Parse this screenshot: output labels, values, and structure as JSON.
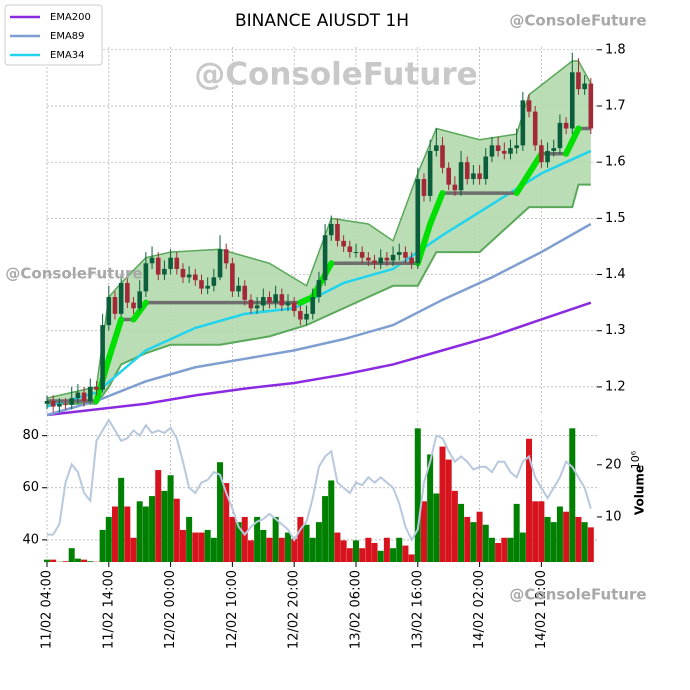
{
  "chart_data": [
    {
      "type": "candlestick",
      "title": "BINANCE AIUSDT 1H",
      "annotations": [
        "@ConsoleFuture",
        "@ConsoleFuture",
        "@ConsoleFuture",
        "@ConsoleFuture"
      ],
      "ylim": [
        1.15,
        1.805
      ],
      "yticks": [
        1.2,
        1.3,
        1.4,
        1.5,
        1.6,
        1.7,
        1.8
      ],
      "grid": true,
      "legend": "upper left",
      "up_color": "#0a5e3c",
      "down_color": "#a32838",
      "x": [
        0,
        1,
        2,
        3,
        4,
        5,
        6,
        7,
        8,
        9,
        10,
        11,
        12,
        13,
        14,
        15,
        16,
        17,
        18,
        19,
        20,
        21,
        22,
        23,
        24,
        25,
        26,
        27,
        28,
        29,
        30,
        31,
        32,
        33,
        34,
        35,
        36,
        37,
        38,
        39,
        40,
        41,
        42,
        43,
        44,
        45,
        46,
        47,
        48,
        49,
        50,
        51,
        52,
        53,
        54,
        55,
        56,
        57,
        58,
        59,
        60,
        61,
        62,
        63,
        64,
        65,
        66,
        67,
        68,
        69,
        70,
        71,
        72,
        73,
        74,
        75,
        76,
        77,
        78,
        79,
        80,
        81,
        82,
        83,
        84,
        85,
        86,
        87,
        88
      ],
      "open": [
        1.17,
        1.175,
        1.165,
        1.17,
        1.168,
        1.18,
        1.19,
        1.175,
        1.2,
        1.195,
        1.31,
        1.36,
        1.33,
        1.385,
        1.35,
        1.34,
        1.37,
        1.42,
        1.43,
        1.4,
        1.41,
        1.43,
        1.41,
        1.395,
        1.4,
        1.39,
        1.375,
        1.38,
        1.395,
        1.445,
        1.42,
        1.37,
        1.38,
        1.355,
        1.34,
        1.345,
        1.36,
        1.35,
        1.365,
        1.345,
        1.35,
        1.335,
        1.32,
        1.33,
        1.36,
        1.39,
        1.47,
        1.49,
        1.46,
        1.45,
        1.44,
        1.44,
        1.43,
        1.425,
        1.42,
        1.43,
        1.425,
        1.435,
        1.44,
        1.43,
        1.42,
        1.57,
        1.54,
        1.62,
        1.63,
        1.59,
        1.56,
        1.55,
        1.6,
        1.57,
        1.58,
        1.57,
        1.61,
        1.63,
        1.62,
        1.615,
        1.625,
        1.63,
        1.71,
        1.69,
        1.63,
        1.6,
        1.62,
        1.625,
        1.67,
        1.66,
        1.76,
        1.73,
        1.74
      ],
      "high": [
        1.185,
        1.185,
        1.18,
        1.18,
        1.2,
        1.205,
        1.2,
        1.215,
        1.21,
        1.33,
        1.38,
        1.37,
        1.4,
        1.395,
        1.36,
        1.39,
        1.44,
        1.45,
        1.44,
        1.425,
        1.445,
        1.44,
        1.42,
        1.415,
        1.41,
        1.4,
        1.395,
        1.41,
        1.47,
        1.455,
        1.43,
        1.395,
        1.39,
        1.365,
        1.36,
        1.375,
        1.37,
        1.38,
        1.375,
        1.365,
        1.36,
        1.345,
        1.345,
        1.375,
        1.405,
        1.49,
        1.505,
        1.5,
        1.47,
        1.46,
        1.455,
        1.45,
        1.44,
        1.435,
        1.445,
        1.44,
        1.45,
        1.455,
        1.45,
        1.44,
        1.59,
        1.58,
        1.64,
        1.66,
        1.645,
        1.6,
        1.575,
        1.62,
        1.61,
        1.595,
        1.595,
        1.625,
        1.645,
        1.645,
        1.635,
        1.64,
        1.66,
        1.725,
        1.72,
        1.7,
        1.64,
        1.635,
        1.64,
        1.685,
        1.68,
        1.795,
        1.785,
        1.755,
        1.75
      ],
      "low": [
        1.16,
        1.155,
        1.155,
        1.16,
        1.16,
        1.17,
        1.165,
        1.17,
        1.185,
        1.19,
        1.3,
        1.32,
        1.325,
        1.34,
        1.33,
        1.335,
        1.36,
        1.41,
        1.39,
        1.39,
        1.4,
        1.4,
        1.385,
        1.385,
        1.38,
        1.365,
        1.365,
        1.37,
        1.39,
        1.41,
        1.36,
        1.36,
        1.345,
        1.33,
        1.33,
        1.335,
        1.34,
        1.34,
        1.335,
        1.335,
        1.325,
        1.31,
        1.31,
        1.32,
        1.35,
        1.38,
        1.46,
        1.45,
        1.44,
        1.43,
        1.43,
        1.42,
        1.415,
        1.41,
        1.41,
        1.415,
        1.415,
        1.425,
        1.42,
        1.41,
        1.41,
        1.53,
        1.53,
        1.61,
        1.58,
        1.55,
        1.54,
        1.54,
        1.56,
        1.56,
        1.56,
        1.56,
        1.6,
        1.61,
        1.605,
        1.605,
        1.615,
        1.62,
        1.68,
        1.62,
        1.59,
        1.59,
        1.61,
        1.615,
        1.65,
        1.65,
        1.72,
        1.72,
        1.65
      ],
      "close": [
        1.175,
        1.165,
        1.17,
        1.168,
        1.18,
        1.19,
        1.175,
        1.2,
        1.195,
        1.31,
        1.36,
        1.33,
        1.385,
        1.35,
        1.34,
        1.37,
        1.42,
        1.43,
        1.4,
        1.41,
        1.43,
        1.41,
        1.395,
        1.4,
        1.39,
        1.375,
        1.38,
        1.395,
        1.445,
        1.42,
        1.37,
        1.38,
        1.355,
        1.34,
        1.345,
        1.36,
        1.35,
        1.365,
        1.345,
        1.35,
        1.335,
        1.32,
        1.33,
        1.36,
        1.39,
        1.47,
        1.49,
        1.46,
        1.45,
        1.44,
        1.44,
        1.43,
        1.425,
        1.42,
        1.43,
        1.425,
        1.435,
        1.44,
        1.43,
        1.42,
        1.57,
        1.54,
        1.62,
        1.63,
        1.59,
        1.56,
        1.55,
        1.6,
        1.57,
        1.58,
        1.57,
        1.61,
        1.63,
        1.62,
        1.615,
        1.625,
        1.63,
        1.71,
        1.69,
        1.63,
        1.6,
        1.62,
        1.625,
        1.67,
        1.66,
        1.76,
        1.73,
        1.74,
        1.66
      ],
      "cloud": {
        "color": "#b3d9ad",
        "edge_color": "#5aa85a",
        "x": [
          0,
          8,
          10,
          12,
          16,
          20,
          28,
          36,
          42,
          46,
          52,
          56,
          60,
          63,
          70,
          76,
          78,
          85,
          86,
          88
        ],
        "upper": [
          1.18,
          1.2,
          1.36,
          1.385,
          1.43,
          1.44,
          1.445,
          1.42,
          1.38,
          1.5,
          1.49,
          1.46,
          1.58,
          1.66,
          1.64,
          1.65,
          1.72,
          1.78,
          1.78,
          1.74
        ],
        "lower": [
          1.17,
          1.17,
          1.2,
          1.24,
          1.26,
          1.275,
          1.275,
          1.29,
          1.31,
          1.33,
          1.36,
          1.38,
          1.38,
          1.44,
          1.44,
          1.5,
          1.52,
          1.52,
          1.56,
          1.56
        ]
      },
      "base": {
        "color": "#6e6e6e",
        "highlight_color": "#00e000",
        "x": [
          0,
          8,
          10,
          12,
          14,
          16,
          41,
          43,
          46,
          60,
          62,
          64,
          76,
          78,
          80,
          84,
          86,
          88
        ],
        "values": [
          1.175,
          1.175,
          1.25,
          1.32,
          1.32,
          1.35,
          1.35,
          1.36,
          1.42,
          1.42,
          1.49,
          1.545,
          1.545,
          1.58,
          1.615,
          1.615,
          1.66,
          1.66
        ]
      },
      "series": [
        {
          "name": "EMA200",
          "color": "#8a2be2",
          "x": [
            0,
            8,
            16,
            24,
            32,
            40,
            48,
            56,
            64,
            72,
            80,
            88
          ],
          "values": [
            1.15,
            1.16,
            1.17,
            1.185,
            1.197,
            1.207,
            1.222,
            1.24,
            1.265,
            1.29,
            1.32,
            1.35
          ]
        },
        {
          "name": "EMA89",
          "color": "#7f9fd0",
          "x": [
            0,
            8,
            16,
            24,
            32,
            40,
            48,
            56,
            64,
            72,
            80,
            88
          ],
          "values": [
            1.15,
            1.175,
            1.21,
            1.235,
            1.25,
            1.265,
            1.285,
            1.31,
            1.355,
            1.395,
            1.44,
            1.49
          ]
        },
        {
          "name": "EMA34",
          "color": "#22d3ee",
          "x": [
            0,
            8,
            16,
            24,
            32,
            40,
            48,
            56,
            64,
            72,
            80,
            88
          ],
          "values": [
            1.165,
            1.19,
            1.265,
            1.305,
            1.33,
            1.34,
            1.385,
            1.41,
            1.47,
            1.525,
            1.58,
            1.62
          ]
        }
      ]
    },
    {
      "type": "bar",
      "y2label": "Volume",
      "y2_exponent": "10⁶",
      "grid": true,
      "xlim": [
        0,
        89
      ],
      "xticks": [
        {
          "value": 0,
          "label": "11/02 04:00"
        },
        {
          "value": 10,
          "label": "11/02 14:00"
        },
        {
          "value": 20,
          "label": "12/02 00:00"
        },
        {
          "value": 30,
          "label": "12/02 10:00"
        },
        {
          "value": 40,
          "label": "12/02 20:00"
        },
        {
          "value": 50,
          "label": "13/02 06:00"
        },
        {
          "value": 60,
          "label": "13/02 16:00"
        },
        {
          "value": 70,
          "label": "14/02 02:00"
        },
        {
          "value": 80,
          "label": "14/02 12:00"
        }
      ],
      "ylim": [
        31.5,
        86
      ],
      "yticks": [
        40,
        60,
        80
      ],
      "y2lim": [
        1.35,
        28.6
      ],
      "y2ticks": [
        10,
        20
      ],
      "up_color": "#008000",
      "down_color": "#d7141e",
      "volume": {
        "axis": "y2",
        "values": [
          1.8,
          1.8,
          1.4,
          1.5,
          4,
          2,
          1.8,
          1.5,
          1.4,
          7.5,
          10,
          12,
          17.5,
          12,
          6,
          13,
          12,
          14,
          19,
          15,
          18,
          13.5,
          7.5,
          10,
          7,
          7,
          7.5,
          6,
          20.5,
          16.5,
          10,
          9,
          10,
          5.5,
          10,
          7.5,
          6,
          10,
          6,
          7,
          5.8,
          10,
          8.5,
          6,
          9,
          14,
          17,
          7,
          5.5,
          4,
          5.5,
          4,
          6,
          5,
          3.5,
          6,
          4,
          6,
          4.5,
          2.8,
          27,
          13,
          22,
          14.5,
          23.5,
          21,
          15,
          12.5,
          10,
          9,
          11,
          8.5,
          6,
          5,
          6,
          6,
          12.5,
          7,
          25,
          13,
          13,
          10,
          9,
          12,
          11,
          27,
          10,
          9,
          8
        ]
      },
      "line": {
        "color": "#b8c8de",
        "values": [
          42,
          42,
          46,
          62,
          69,
          66,
          58,
          55,
          78,
          82,
          86,
          82,
          78,
          79,
          82,
          80,
          84,
          81,
          82,
          81,
          83,
          79,
          70,
          60,
          58,
          62,
          63,
          66,
          65,
          58,
          52,
          45,
          42,
          45,
          47,
          48,
          50,
          48,
          46,
          44,
          40,
          44,
          47,
          56,
          68,
          72,
          74,
          62,
          60,
          58,
          62,
          61,
          64,
          62,
          64,
          62,
          60,
          54,
          45,
          40,
          44,
          62,
          70,
          80,
          79,
          74,
          70,
          72,
          70,
          67,
          68,
          68,
          66,
          70,
          70,
          66,
          64,
          70,
          72,
          64,
          60,
          56,
          60,
          64,
          70,
          68,
          64,
          60,
          52
        ]
      }
    }
  ]
}
